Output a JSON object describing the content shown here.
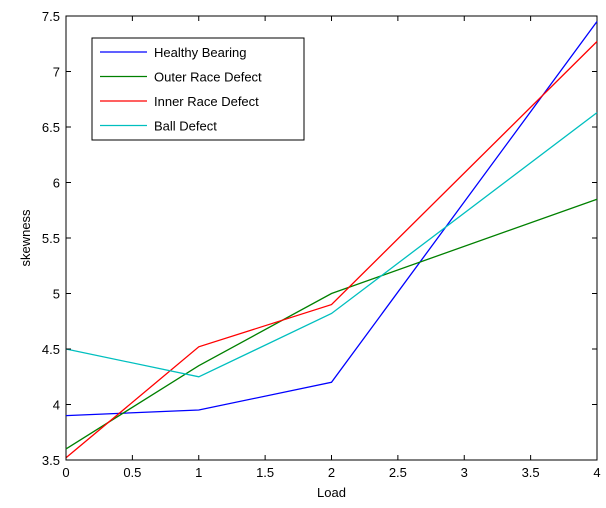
{
  "chart_data": {
    "type": "line",
    "title": "",
    "xlabel": "Load",
    "ylabel": "skewness",
    "xlim": [
      0,
      4
    ],
    "ylim": [
      3.5,
      7.5
    ],
    "xticks": [
      0,
      0.5,
      1,
      1.5,
      2,
      2.5,
      3,
      3.5,
      4
    ],
    "xtick_labels": [
      "0",
      "0.5",
      "1",
      "1.5",
      "2",
      "2.5",
      "3",
      "3.5",
      "4"
    ],
    "yticks": [
      3.5,
      4,
      4.5,
      5,
      5.5,
      6,
      6.5,
      7,
      7.5
    ],
    "ytick_labels": [
      "3.5",
      "4",
      "4.5",
      "5",
      "5.5",
      "6",
      "6.5",
      "7",
      "7.5"
    ],
    "grid": false,
    "legend_position": "top-left",
    "x": [
      0,
      1,
      2,
      4
    ],
    "series": [
      {
        "name": "Healthy Bearing",
        "color": "#0000ff",
        "values": [
          3.9,
          3.95,
          4.2,
          7.45
        ]
      },
      {
        "name": "Outer Race Defect",
        "color": "#008000",
        "values": [
          3.6,
          4.35,
          5.0,
          5.85
        ]
      },
      {
        "name": "Inner Race Defect",
        "color": "#ff0000",
        "values": [
          3.52,
          4.52,
          4.9,
          7.27
        ]
      },
      {
        "name": "Ball Defect",
        "color": "#00bfbf",
        "values": [
          4.5,
          4.25,
          4.82,
          6.63
        ]
      }
    ]
  }
}
